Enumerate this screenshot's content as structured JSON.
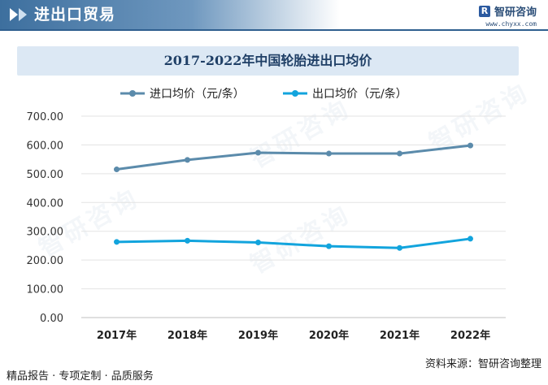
{
  "header": {
    "title": "进出口贸易",
    "brand_name": "智研咨询",
    "brand_url": "www.chyxx.com"
  },
  "footer": {
    "left": "精品报告 · 专项定制 · 品质服务",
    "right": "资料来源：智研咨询整理"
  },
  "watermark": "智研咨询",
  "chart_data": {
    "type": "line",
    "title": "2017-2022年中国轮胎进出口均价",
    "categories": [
      "2017年",
      "2018年",
      "2019年",
      "2020年",
      "2021年",
      "2022年"
    ],
    "series": [
      {
        "name": "进口均价（元/条）",
        "color": "#5b8bab",
        "values": [
          515,
          548,
          573,
          570,
          570,
          598
        ]
      },
      {
        "name": "出口均价（元/条）",
        "color": "#12a4dd",
        "values": [
          263,
          267,
          261,
          248,
          242,
          274
        ]
      }
    ],
    "ylim": [
      0,
      700
    ],
    "yticks": [
      "0.00",
      "100.00",
      "200.00",
      "300.00",
      "400.00",
      "500.00",
      "600.00",
      "700.00"
    ],
    "grid": true,
    "legend": "top"
  }
}
